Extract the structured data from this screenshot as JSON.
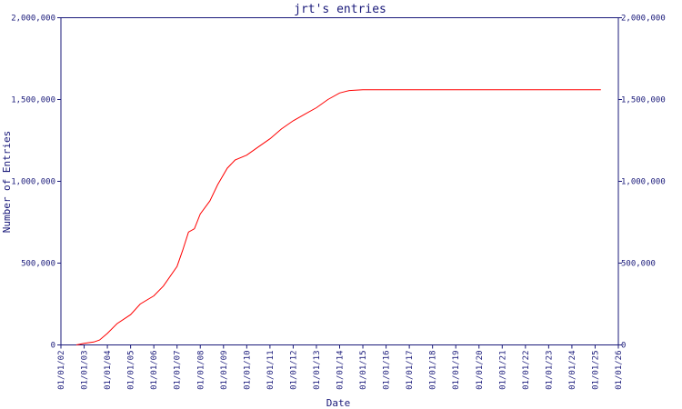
{
  "chart_data": {
    "type": "line",
    "title": "jrt's entries",
    "xlabel": "Date",
    "ylabel": "Number of Entries",
    "x_ticks": [
      "01/01/02",
      "01/01/03",
      "01/01/04",
      "01/01/05",
      "01/01/06",
      "01/01/07",
      "01/01/08",
      "01/01/09",
      "01/01/10",
      "01/01/11",
      "01/01/12",
      "01/01/13",
      "01/01/14",
      "01/01/15",
      "01/01/16",
      "01/01/17",
      "01/01/18",
      "01/01/19",
      "01/01/20",
      "01/01/21",
      "01/01/22",
      "01/01/23",
      "01/01/24",
      "01/01/25",
      "01/01/26"
    ],
    "y_ticks": [
      "0",
      "500,000",
      "1,000,000",
      "1,500,000",
      "2,000,000"
    ],
    "ylim": [
      0,
      2000000
    ],
    "xlim": [
      "2002-01-01",
      "2026-01-01"
    ],
    "series": [
      {
        "x": [
          "2002-09-01",
          "2003-01-01",
          "2003-06-01",
          "2003-09-01",
          "2004-01-01",
          "2004-06-01",
          "2005-01-01",
          "2005-06-01",
          "2006-01-01",
          "2006-06-01",
          "2007-01-01",
          "2007-04-01",
          "2007-07-01",
          "2007-10-01",
          "2008-01-01",
          "2008-06-01",
          "2008-10-01",
          "2009-03-01",
          "2009-07-01",
          "2010-01-01",
          "2010-07-01",
          "2011-01-01",
          "2011-07-01",
          "2012-01-01",
          "2012-07-01",
          "2013-01-01",
          "2013-07-01",
          "2014-01-01",
          "2014-06-01",
          "2015-01-01",
          "2016-01-01",
          "2018-01-01",
          "2020-01-01",
          "2022-01-01",
          "2024-01-01",
          "2025-04-01"
        ],
        "y": [
          0,
          10000,
          18000,
          30000,
          70000,
          130000,
          185000,
          250000,
          300000,
          360000,
          480000,
          580000,
          690000,
          710000,
          800000,
          880000,
          980000,
          1080000,
          1130000,
          1160000,
          1210000,
          1260000,
          1320000,
          1370000,
          1410000,
          1450000,
          1500000,
          1540000,
          1555000,
          1560000,
          1560000,
          1560000,
          1560000,
          1560000,
          1560000,
          1560000
        ],
        "color": "#ff0000"
      }
    ],
    "axis_color": "#1a1a7a",
    "grid": false,
    "legend": "none"
  }
}
